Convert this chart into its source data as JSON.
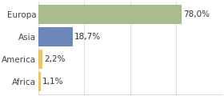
{
  "categories": [
    "Europa",
    "Asia",
    "America",
    "Africa"
  ],
  "values": [
    78.0,
    18.7,
    2.2,
    1.1
  ],
  "labels": [
    "78,0%",
    "18,7%",
    "2,2%",
    "1,1%"
  ],
  "bar_colors": [
    "#a8bc8f",
    "#6b87b8",
    "#e8c46a",
    "#e8c46a"
  ],
  "xlim": [
    0,
    100
  ],
  "background_color": "#ffffff",
  "bar_height": 0.85,
  "label_fontsize": 7.5,
  "tick_fontsize": 7.5
}
